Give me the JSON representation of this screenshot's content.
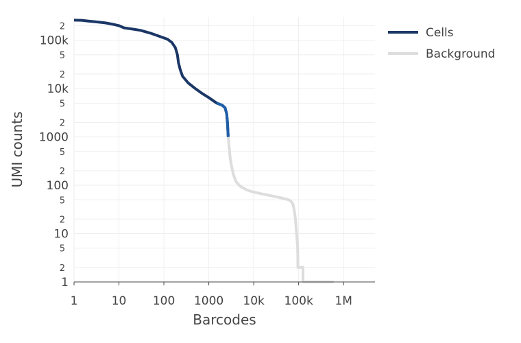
{
  "chart_data": {
    "type": "line",
    "title": "",
    "xlabel": "Barcodes",
    "ylabel": "UMI counts",
    "x_scale": "log",
    "y_scale": "log",
    "xlim": [
      1,
      5000000
    ],
    "ylim": [
      1,
      300000
    ],
    "grid": true,
    "legend_position": "right",
    "x_major_ticks": [
      {
        "value": 1,
        "label": "1"
      },
      {
        "value": 10,
        "label": "10"
      },
      {
        "value": 100,
        "label": "100"
      },
      {
        "value": 1000,
        "label": "1000"
      },
      {
        "value": 10000,
        "label": "10k"
      },
      {
        "value": 100000,
        "label": "100k"
      },
      {
        "value": 1000000,
        "label": "1M"
      }
    ],
    "y_major_ticks": [
      {
        "value": 1,
        "label": "1"
      },
      {
        "value": 10,
        "label": "10"
      },
      {
        "value": 100,
        "label": "100"
      },
      {
        "value": 1000,
        "label": "1000"
      },
      {
        "value": 10000,
        "label": "10k"
      },
      {
        "value": 100000,
        "label": "100k"
      }
    ],
    "y_minor_ticks": [
      {
        "value": 2,
        "label": "2"
      },
      {
        "value": 5,
        "label": "5"
      },
      {
        "value": 20,
        "label": "2"
      },
      {
        "value": 50,
        "label": "5"
      },
      {
        "value": 200,
        "label": "2"
      },
      {
        "value": 500,
        "label": "5"
      },
      {
        "value": 2000,
        "label": "2"
      },
      {
        "value": 5000,
        "label": "5"
      },
      {
        "value": 20000,
        "label": "2"
      },
      {
        "value": 50000,
        "label": "5"
      },
      {
        "value": 200000,
        "label": "2"
      }
    ],
    "series": [
      {
        "name": "Cells",
        "color": "#1b3766",
        "highlight_color": "#1f5fa8",
        "highlight_range": [
          1500,
          2700
        ],
        "points": [
          [
            1,
            260000
          ],
          [
            1.5,
            258000
          ],
          [
            2,
            250000
          ],
          [
            3,
            240000
          ],
          [
            5,
            228000
          ],
          [
            8,
            210000
          ],
          [
            10,
            200000
          ],
          [
            13,
            180000
          ],
          [
            20,
            170000
          ],
          [
            30,
            160000
          ],
          [
            50,
            140000
          ],
          [
            80,
            120000
          ],
          [
            120,
            105000
          ],
          [
            150,
            90000
          ],
          [
            180,
            70000
          ],
          [
            200,
            50000
          ],
          [
            210,
            35000
          ],
          [
            230,
            25000
          ],
          [
            260,
            18000
          ],
          [
            350,
            13000
          ],
          [
            500,
            10000
          ],
          [
            700,
            8000
          ],
          [
            1000,
            6500
          ],
          [
            1500,
            5000
          ],
          [
            2000,
            4500
          ],
          [
            2300,
            4000
          ],
          [
            2500,
            3000
          ],
          [
            2600,
            2000
          ],
          [
            2700,
            1000
          ]
        ]
      },
      {
        "name": "Background",
        "color": "#dddddd",
        "points": [
          [
            2700,
            1000
          ],
          [
            2800,
            700
          ],
          [
            2900,
            500
          ],
          [
            3000,
            350
          ],
          [
            3200,
            250
          ],
          [
            3500,
            170
          ],
          [
            4000,
            120
          ],
          [
            5000,
            95
          ],
          [
            7000,
            80
          ],
          [
            10000,
            72
          ],
          [
            20000,
            63
          ],
          [
            40000,
            55
          ],
          [
            60000,
            50
          ],
          [
            70000,
            45
          ],
          [
            75000,
            40
          ],
          [
            80000,
            30
          ],
          [
            85000,
            20
          ],
          [
            90000,
            10
          ],
          [
            95000,
            5
          ],
          [
            96000,
            3
          ],
          [
            96000,
            2
          ],
          [
            120000,
            2
          ],
          [
            125000,
            2
          ],
          [
            125000,
            1
          ],
          [
            600000,
            1
          ]
        ]
      }
    ]
  }
}
